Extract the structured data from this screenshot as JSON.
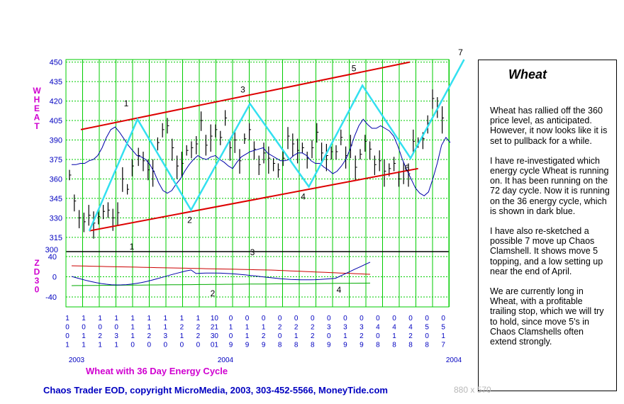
{
  "chart_data": [
    {
      "type": "line",
      "ylabel": "WHEAT",
      "ylim": [
        304,
        452
      ],
      "yticks": [
        300,
        315,
        330,
        345,
        360,
        375,
        390,
        405,
        420,
        435,
        450
      ],
      "x_date_labels": [
        "10/01",
        "10/11",
        "10/21",
        "10/31",
        "11/10",
        "11/20",
        "11/30",
        "12/10",
        "12/20",
        "12/21/30/01",
        "01/09",
        "01/19",
        "01/29",
        "02/08",
        "02/18",
        "02/28",
        "03/09",
        "03/19",
        "03/29",
        "04/08",
        "04/18",
        "04/28",
        "05/08",
        "05/17"
      ],
      "year_labels": [
        "2003",
        "2004",
        "2004"
      ],
      "bar_closes": [
        363,
        343,
        330,
        327,
        332,
        326,
        331,
        335,
        336,
        330,
        334,
        360,
        352,
        370,
        378,
        374,
        367,
        366,
        388,
        398,
        401,
        384,
        370,
        372,
        382,
        384,
        387,
        405,
        386,
        393,
        398,
        392,
        407,
        384,
        390,
        374,
        391,
        398,
        383,
        371,
        380,
        376,
        372,
        367,
        376,
        393,
        387,
        382,
        384,
        376,
        384,
        396,
        380,
        378,
        381,
        381,
        392,
        378,
        386,
        369,
        379,
        389,
        383,
        371,
        374,
        366,
        368,
        372,
        360,
        366,
        364,
        389,
        388,
        391,
        403,
        422,
        415,
        407
      ],
      "cycle_line": [
        [
          0,
          320
        ],
        [
          9,
          406
        ],
        [
          19,
          336
        ],
        [
          30,
          418
        ],
        [
          41,
          354
        ],
        [
          51,
          432
        ],
        [
          60,
          376
        ],
        [
          70,
          452
        ]
      ],
      "cycle_labels": [
        "1",
        "2",
        "3",
        "4",
        "5",
        "6",
        "7"
      ],
      "channel_upper": [
        [
          0,
          398
        ],
        [
          58,
          450
        ]
      ],
      "channel_lower": [
        [
          0,
          320
        ],
        [
          63,
          368
        ]
      ],
      "average_line": [
        371,
        371,
        372,
        372,
        374,
        375,
        378,
        384,
        392,
        398,
        400,
        396,
        391,
        386,
        382,
        378,
        377,
        375,
        371,
        365,
        357,
        351,
        349,
        351,
        356,
        360,
        366,
        371,
        375,
        378,
        376,
        375,
        377,
        378,
        375,
        373,
        370,
        368,
        373,
        377,
        379,
        381,
        382,
        383,
        384,
        380,
        378,
        376,
        374,
        374,
        375,
        378,
        380,
        380,
        378,
        374,
        372,
        372,
        369,
        367,
        364,
        366,
        370,
        375,
        383,
        393,
        401,
        406,
        402,
        399,
        399,
        401,
        399,
        397,
        393,
        385,
        375,
        367,
        360,
        353,
        349,
        347,
        350,
        360,
        372,
        386,
        392,
        388
      ],
      "oscillator": {
        "label": "ZD30",
        "ylim": [
          -40,
          40
        ],
        "yticks": [
          -40,
          0,
          40
        ],
        "labels": [
          "1",
          "2",
          "3",
          "4"
        ]
      },
      "subtitle": "Wheat with  36 Day Energy Cycle"
    }
  ],
  "note": {
    "title": "Wheat",
    "paragraphs": [
      "Wheat has rallied off the 360 price level, as anticipated. However, it now looks like it is set to pullback for a while.",
      "I have re-investigated which energy cycle Wheat is running on. It has been running on the 72 day cycle. Now it is running on the 36 energy cycle, which is shown in dark blue.",
      "I have also re-sketched a possible 7 move up Chaos Clamshell. It shows move 5 topping, and a low setting up near the end of April.",
      "We are currently long in Wheat, with a profitable trailing stop, which we will try to hold, since move 5's in Chaos Clamshells often extend strongly."
    ]
  },
  "footer": "Chaos Trader EOD, copyright MicroMedia, 2003, 303-452-5566, MoneyTide.com",
  "dims": "880 x 570",
  "colors": {
    "grid": "#00cc00",
    "bars": "#000000",
    "average": "#0000aa",
    "cycle": "#33e0f0",
    "channel": "#dd0000",
    "label": "#d000d0",
    "axis_text": "#0000c0"
  }
}
